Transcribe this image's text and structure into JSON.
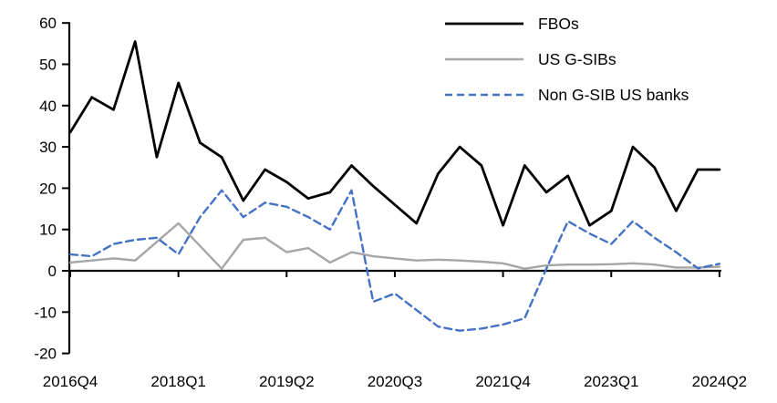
{
  "chart_data": {
    "type": "line",
    "title": "",
    "xlabel": "",
    "ylabel": "",
    "grid": false,
    "legend_position": "top-right",
    "axis_color": "#000000",
    "background_color": "#ffffff",
    "ylim": [
      -20,
      60
    ],
    "ytick_step": 10,
    "ytick_labels": [
      "60",
      "50",
      "40",
      "30",
      "20",
      "10",
      "0",
      "-10",
      "-20"
    ],
    "xtick_labels": [
      "2016Q4",
      "2018Q1",
      "2019Q2",
      "2020Q3",
      "2021Q4",
      "2023Q1",
      "2024Q2"
    ],
    "xtick_every": 5,
    "categories": [
      "2016Q4",
      "2017Q1",
      "2017Q2",
      "2017Q3",
      "2017Q4",
      "2018Q1",
      "2018Q2",
      "2018Q3",
      "2018Q4",
      "2019Q1",
      "2019Q2",
      "2019Q3",
      "2019Q4",
      "2020Q1",
      "2020Q2",
      "2020Q3",
      "2020Q4",
      "2021Q1",
      "2021Q2",
      "2021Q3",
      "2021Q4",
      "2022Q1",
      "2022Q2",
      "2022Q3",
      "2022Q4",
      "2023Q1",
      "2023Q2",
      "2023Q3",
      "2023Q4",
      "2024Q1",
      "2024Q2"
    ],
    "series": [
      {
        "name": "FBOs",
        "color": "#000000",
        "line_style": "solid",
        "values": [
          33.5,
          42,
          39,
          55.5,
          27.5,
          45.5,
          31,
          27.5,
          17,
          24.5,
          21.5,
          17.5,
          19,
          25.5,
          20.5,
          16,
          11.5,
          23.5,
          30,
          25.5,
          11,
          25.5,
          19,
          23,
          11,
          14.5,
          30,
          25,
          14.5,
          24.5,
          24.5
        ]
      },
      {
        "name": "US G-SIBs",
        "color": "#a6a6a6",
        "line_style": "solid",
        "values": [
          2,
          2.5,
          3,
          2.5,
          7,
          11.5,
          6,
          0.5,
          7.5,
          8,
          4.5,
          5.5,
          2,
          4.5,
          3.5,
          3,
          2.5,
          2.7,
          2.5,
          2.2,
          1.8,
          0.5,
          1.3,
          1.5,
          1.5,
          1.6,
          1.8,
          1.5,
          0.8,
          0.8,
          1
        ]
      },
      {
        "name": "Non G-SIB US banks",
        "color": "#4472c4",
        "line_style": "dashed",
        "values": [
          4,
          3.5,
          6.5,
          7.5,
          8,
          4,
          13,
          19.5,
          13,
          16.5,
          15.5,
          13,
          10,
          19.5,
          -7.5,
          -5.5,
          -9.5,
          -13.5,
          -14.5,
          -14,
          -13,
          -11.5,
          0.5,
          12,
          9,
          6.5,
          12,
          8,
          4.5,
          0.6,
          1.7
        ]
      }
    ]
  }
}
